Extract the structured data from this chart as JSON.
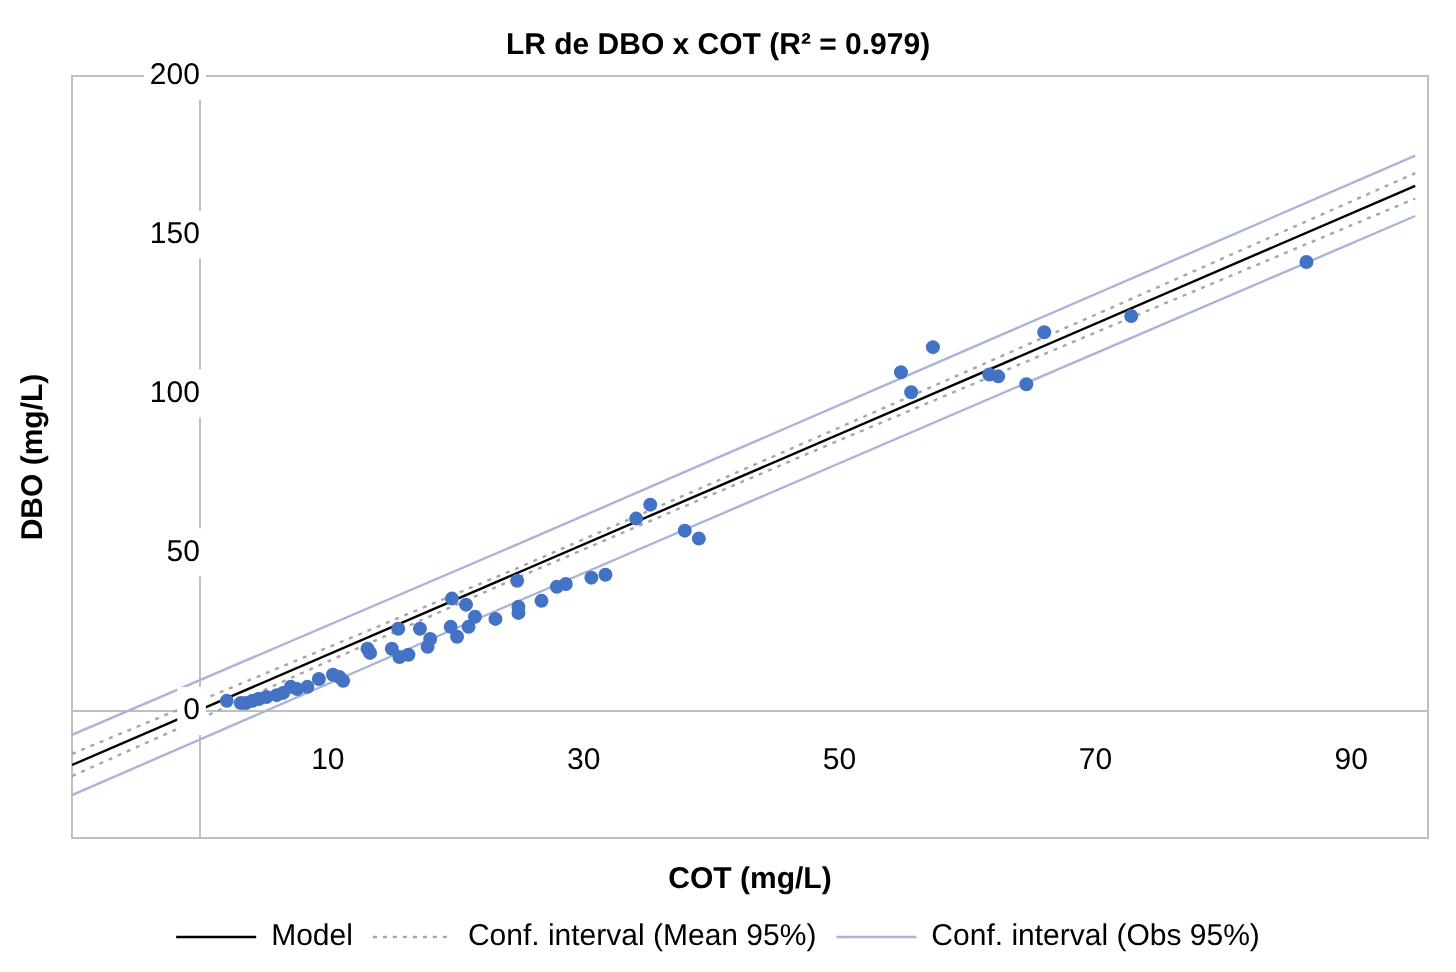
{
  "chart_data": {
    "type": "scatter",
    "title": "LR de DBO x COT (R² = 0.979)",
    "xlabel": "COT (mg/L)",
    "ylabel": "DBO (mg/L)",
    "xlim": [
      -10,
      96
    ],
    "xticks": [
      {
        "value": -10,
        "label": null
      },
      10,
      30,
      50,
      70,
      90
    ],
    "ylim": [
      -40,
      200
    ],
    "yticks": [
      0,
      50,
      100,
      150,
      200
    ],
    "grid": false,
    "legend": "bottom",
    "marker": "circle",
    "series": [
      {
        "color": "#4472c4",
        "x": [
          2.1,
          3.2,
          3.6,
          4.1,
          4.6,
          5.2,
          6,
          6.5,
          7.1,
          7.6,
          8.4,
          9.3,
          10.4,
          11.2,
          10.9,
          13.1,
          13.3,
          15,
          15.5,
          15.6,
          16.3,
          17.2,
          17.8,
          18,
          19.6,
          19.7,
          20.1,
          20.8,
          21,
          21.5,
          23.1,
          24.8,
          24.9,
          24.9,
          26.7,
          27.9,
          28.6,
          30.6,
          31.7,
          34.1,
          35.2,
          37.9,
          39,
          54.8,
          55.6,
          57.3,
          61.7,
          62.4,
          64.6,
          66,
          72.8,
          86.5
        ],
        "values": [
          3.2,
          2.5,
          2.5,
          3.2,
          3.8,
          4.4,
          5,
          5.7,
          7.6,
          6.9,
          7.6,
          10.1,
          11.4,
          9.5,
          10.7,
          19.6,
          18.3,
          19.6,
          25.9,
          17,
          17.7,
          25.9,
          20.2,
          22.7,
          26.5,
          35.4,
          23.4,
          33.5,
          26.5,
          29.7,
          29,
          41,
          32.8,
          30.9,
          34.7,
          39.1,
          40,
          42,
          42.9,
          60.6,
          65,
          56.8,
          54.3,
          106.7,
          100.4,
          114.6,
          106,
          105.4,
          102.9,
          119.3,
          124.4,
          141.4
        ]
      },
      {
        "type": "line",
        "name": "Model",
        "color": "#000000",
        "line_style": "solid",
        "marker": "none",
        "x": [
          -10,
          95
        ],
        "values": [
          -17,
          165.4
        ]
      },
      {
        "type": "line",
        "name": "Conf. interval (Mean 95%)",
        "color": "#a6a6a6",
        "line_style": "dotted",
        "marker": "none",
        "x": [
          -10,
          10,
          25,
          50,
          70,
          95
        ],
        "values": [
          -13.5,
          20,
          45.3,
          89.3,
          124.8,
          169.4
        ]
      },
      {
        "type": "line",
        "color": "#a6a6a6",
        "line_style": "dotted",
        "marker": "none",
        "x": [
          -10,
          10,
          25,
          50,
          70,
          95
        ],
        "values": [
          -20.5,
          15.6,
          42.3,
          85.3,
          119.2,
          161.4
        ]
      },
      {
        "type": "line",
        "name": "Conf. interval (Obs 95%)",
        "color": "#a9b4d9",
        "line_style": "solid",
        "marker": "none",
        "x": [
          -10,
          25,
          95
        ],
        "values": [
          -7.5,
          52.8,
          174.9
        ]
      },
      {
        "type": "line",
        "color": "#a9b4d9",
        "line_style": "solid",
        "marker": "none",
        "x": [
          -10,
          25,
          95
        ],
        "values": [
          -26.5,
          34.8,
          155.9
        ]
      }
    ]
  }
}
